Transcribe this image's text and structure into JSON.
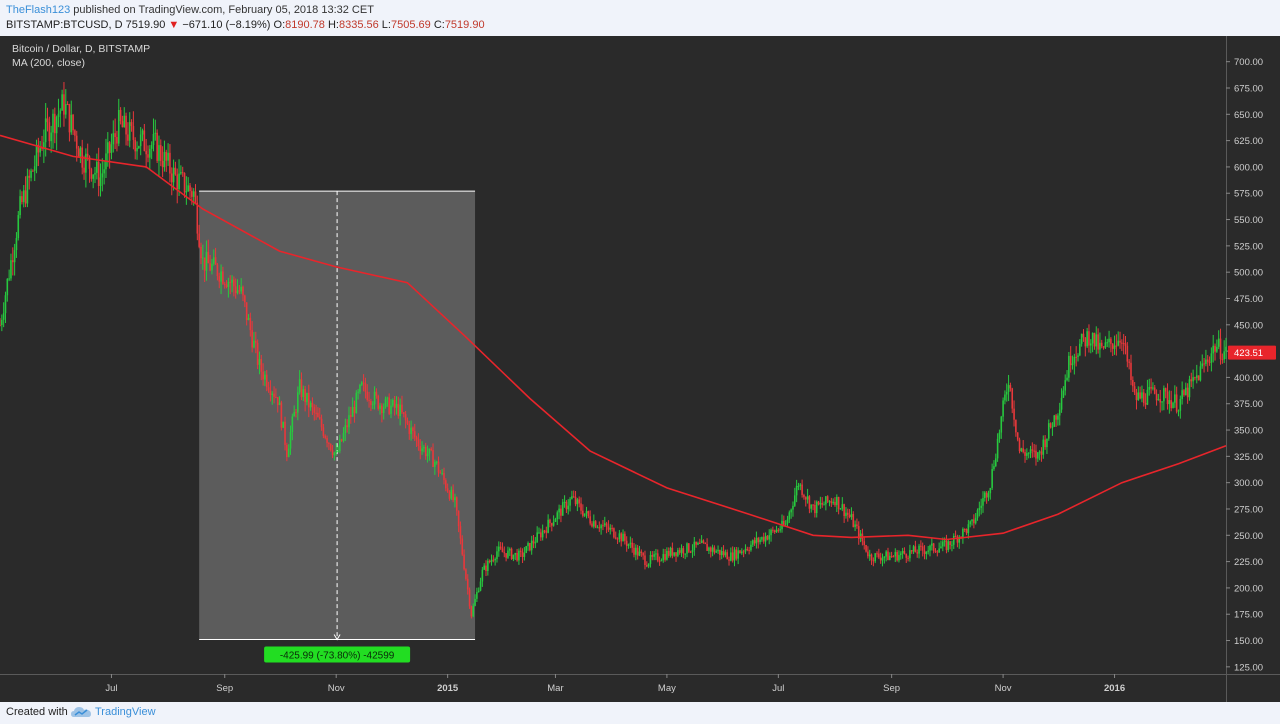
{
  "header": {
    "author": "TheFlash123",
    "published_text": "published on TradingView.com, February 05, 2018 13:32 CET",
    "symbol": "BITSTAMP:BTCUSD, D",
    "last": "7519.90",
    "change": "−671.10 (−8.19%)",
    "o_label": "O:",
    "o_value": "8190.78",
    "h_label": "H:",
    "h_value": "8335.56",
    "l_label": "L:",
    "l_value": "7505.69",
    "c_label": "C:",
    "c_value": "7519.90"
  },
  "footer": {
    "created_with": "Created with",
    "brand": "TradingView"
  },
  "colors": {
    "up": "#27c93f",
    "down": "#e8383b",
    "ma": "#e8252b",
    "background": "#2a2a2a",
    "range_box": "#5c5c5c",
    "label_green": "#22dd22"
  },
  "chart_data": {
    "type": "candlestick",
    "title": "Bitcoin / Dollar, D, BITSTAMP",
    "indicator": "MA (200, close)",
    "x_ticks": [
      "Jul",
      "Sep",
      "Nov",
      "2015",
      "Mar",
      "May",
      "Jul",
      "Sep",
      "Nov",
      "2016"
    ],
    "y_ticks": [
      700,
      675,
      650,
      625,
      600,
      575,
      550,
      525,
      500,
      475,
      450,
      425,
      400,
      375,
      350,
      325,
      300,
      275,
      250,
      225,
      200,
      175,
      150,
      125
    ],
    "y_tick_labels": [
      "700.00",
      "675.00",
      "650.00",
      "625.00",
      "600.00",
      "575.00",
      "550.00",
      "525.00",
      "500.00",
      "475.00",
      "450.00",
      "425.00",
      "400.00",
      "375.00",
      "350.00",
      "325.00",
      "300.00",
      "275.00",
      "250.00",
      "225.00",
      "200.00",
      "175.00",
      "150.00",
      "125.00"
    ],
    "ylim": [
      122,
      713
    ],
    "last_price": 423.51,
    "last_price_label": "423.51",
    "price_path": [
      [
        "2014-05-01",
        450
      ],
      [
        "2014-05-12",
        560
      ],
      [
        "2014-05-25",
        630
      ],
      [
        "2014-06-05",
        660
      ],
      [
        "2014-06-15",
        610
      ],
      [
        "2014-06-25",
        590
      ],
      [
        "2014-07-05",
        640
      ],
      [
        "2014-07-15",
        625
      ],
      [
        "2014-07-25",
        620
      ],
      [
        "2014-08-05",
        590
      ],
      [
        "2014-08-15",
        575
      ],
      [
        "2014-08-20",
        510
      ],
      [
        "2014-08-30",
        500
      ],
      [
        "2014-09-10",
        480
      ],
      [
        "2014-09-20",
        410
      ],
      [
        "2014-09-30",
        380
      ],
      [
        "2014-10-05",
        330
      ],
      [
        "2014-10-12",
        390
      ],
      [
        "2014-10-25",
        350
      ],
      [
        "2014-11-01",
        325
      ],
      [
        "2014-11-08",
        360
      ],
      [
        "2014-11-15",
        390
      ],
      [
        "2014-11-25",
        375
      ],
      [
        "2014-12-05",
        370
      ],
      [
        "2014-12-15",
        340
      ],
      [
        "2014-12-25",
        320
      ],
      [
        "2015-01-05",
        280
      ],
      [
        "2015-01-14",
        175
      ],
      [
        "2015-01-20",
        215
      ],
      [
        "2015-01-28",
        235
      ],
      [
        "2015-02-10",
        230
      ],
      [
        "2015-02-25",
        260
      ],
      [
        "2015-03-10",
        285
      ],
      [
        "2015-03-20",
        265
      ],
      [
        "2015-04-05",
        250
      ],
      [
        "2015-04-20",
        225
      ],
      [
        "2015-05-05",
        235
      ],
      [
        "2015-05-20",
        240
      ],
      [
        "2015-06-05",
        230
      ],
      [
        "2015-06-20",
        245
      ],
      [
        "2015-07-05",
        260
      ],
      [
        "2015-07-12",
        300
      ],
      [
        "2015-07-20",
        275
      ],
      [
        "2015-08-01",
        285
      ],
      [
        "2015-08-10",
        265
      ],
      [
        "2015-08-20",
        230
      ],
      [
        "2015-09-01",
        230
      ],
      [
        "2015-09-15",
        235
      ],
      [
        "2015-10-01",
        240
      ],
      [
        "2015-10-15",
        260
      ],
      [
        "2015-10-25",
        300
      ],
      [
        "2015-11-04",
        400
      ],
      [
        "2015-11-10",
        330
      ],
      [
        "2015-11-20",
        325
      ],
      [
        "2015-12-01",
        370
      ],
      [
        "2015-12-08",
        420
      ],
      [
        "2015-12-18",
        440
      ],
      [
        "2015-12-25",
        425
      ],
      [
        "2016-01-05",
        440
      ],
      [
        "2016-01-12",
        380
      ],
      [
        "2016-01-25",
        385
      ],
      [
        "2016-02-05",
        375
      ],
      [
        "2016-02-15",
        400
      ],
      [
        "2016-02-25",
        430
      ],
      [
        "2016-03-02",
        423.51
      ]
    ],
    "ma_path": [
      [
        "2014-05-01",
        630
      ],
      [
        "2014-06-10",
        610
      ],
      [
        "2014-07-20",
        600
      ],
      [
        "2014-08-20",
        560
      ],
      [
        "2014-10-01",
        520
      ],
      [
        "2014-11-01",
        505
      ],
      [
        "2014-12-10",
        490
      ],
      [
        "2015-01-10",
        440
      ],
      [
        "2015-02-15",
        380
      ],
      [
        "2015-03-20",
        330
      ],
      [
        "2015-05-01",
        295
      ],
      [
        "2015-06-15",
        270
      ],
      [
        "2015-07-20",
        250
      ],
      [
        "2015-08-10",
        248
      ],
      [
        "2015-09-10",
        250
      ],
      [
        "2015-10-01",
        246
      ],
      [
        "2015-11-01",
        252
      ],
      [
        "2015-12-01",
        270
      ],
      [
        "2016-01-05",
        300
      ],
      [
        "2016-02-05",
        318
      ],
      [
        "2016-03-02",
        335
      ]
    ],
    "measurement": {
      "start_date": "2014-08-18",
      "end_date": "2015-01-16",
      "top_price": 577,
      "bottom_price": 151,
      "label": "-425.99 (-73.80%) -42599"
    }
  }
}
